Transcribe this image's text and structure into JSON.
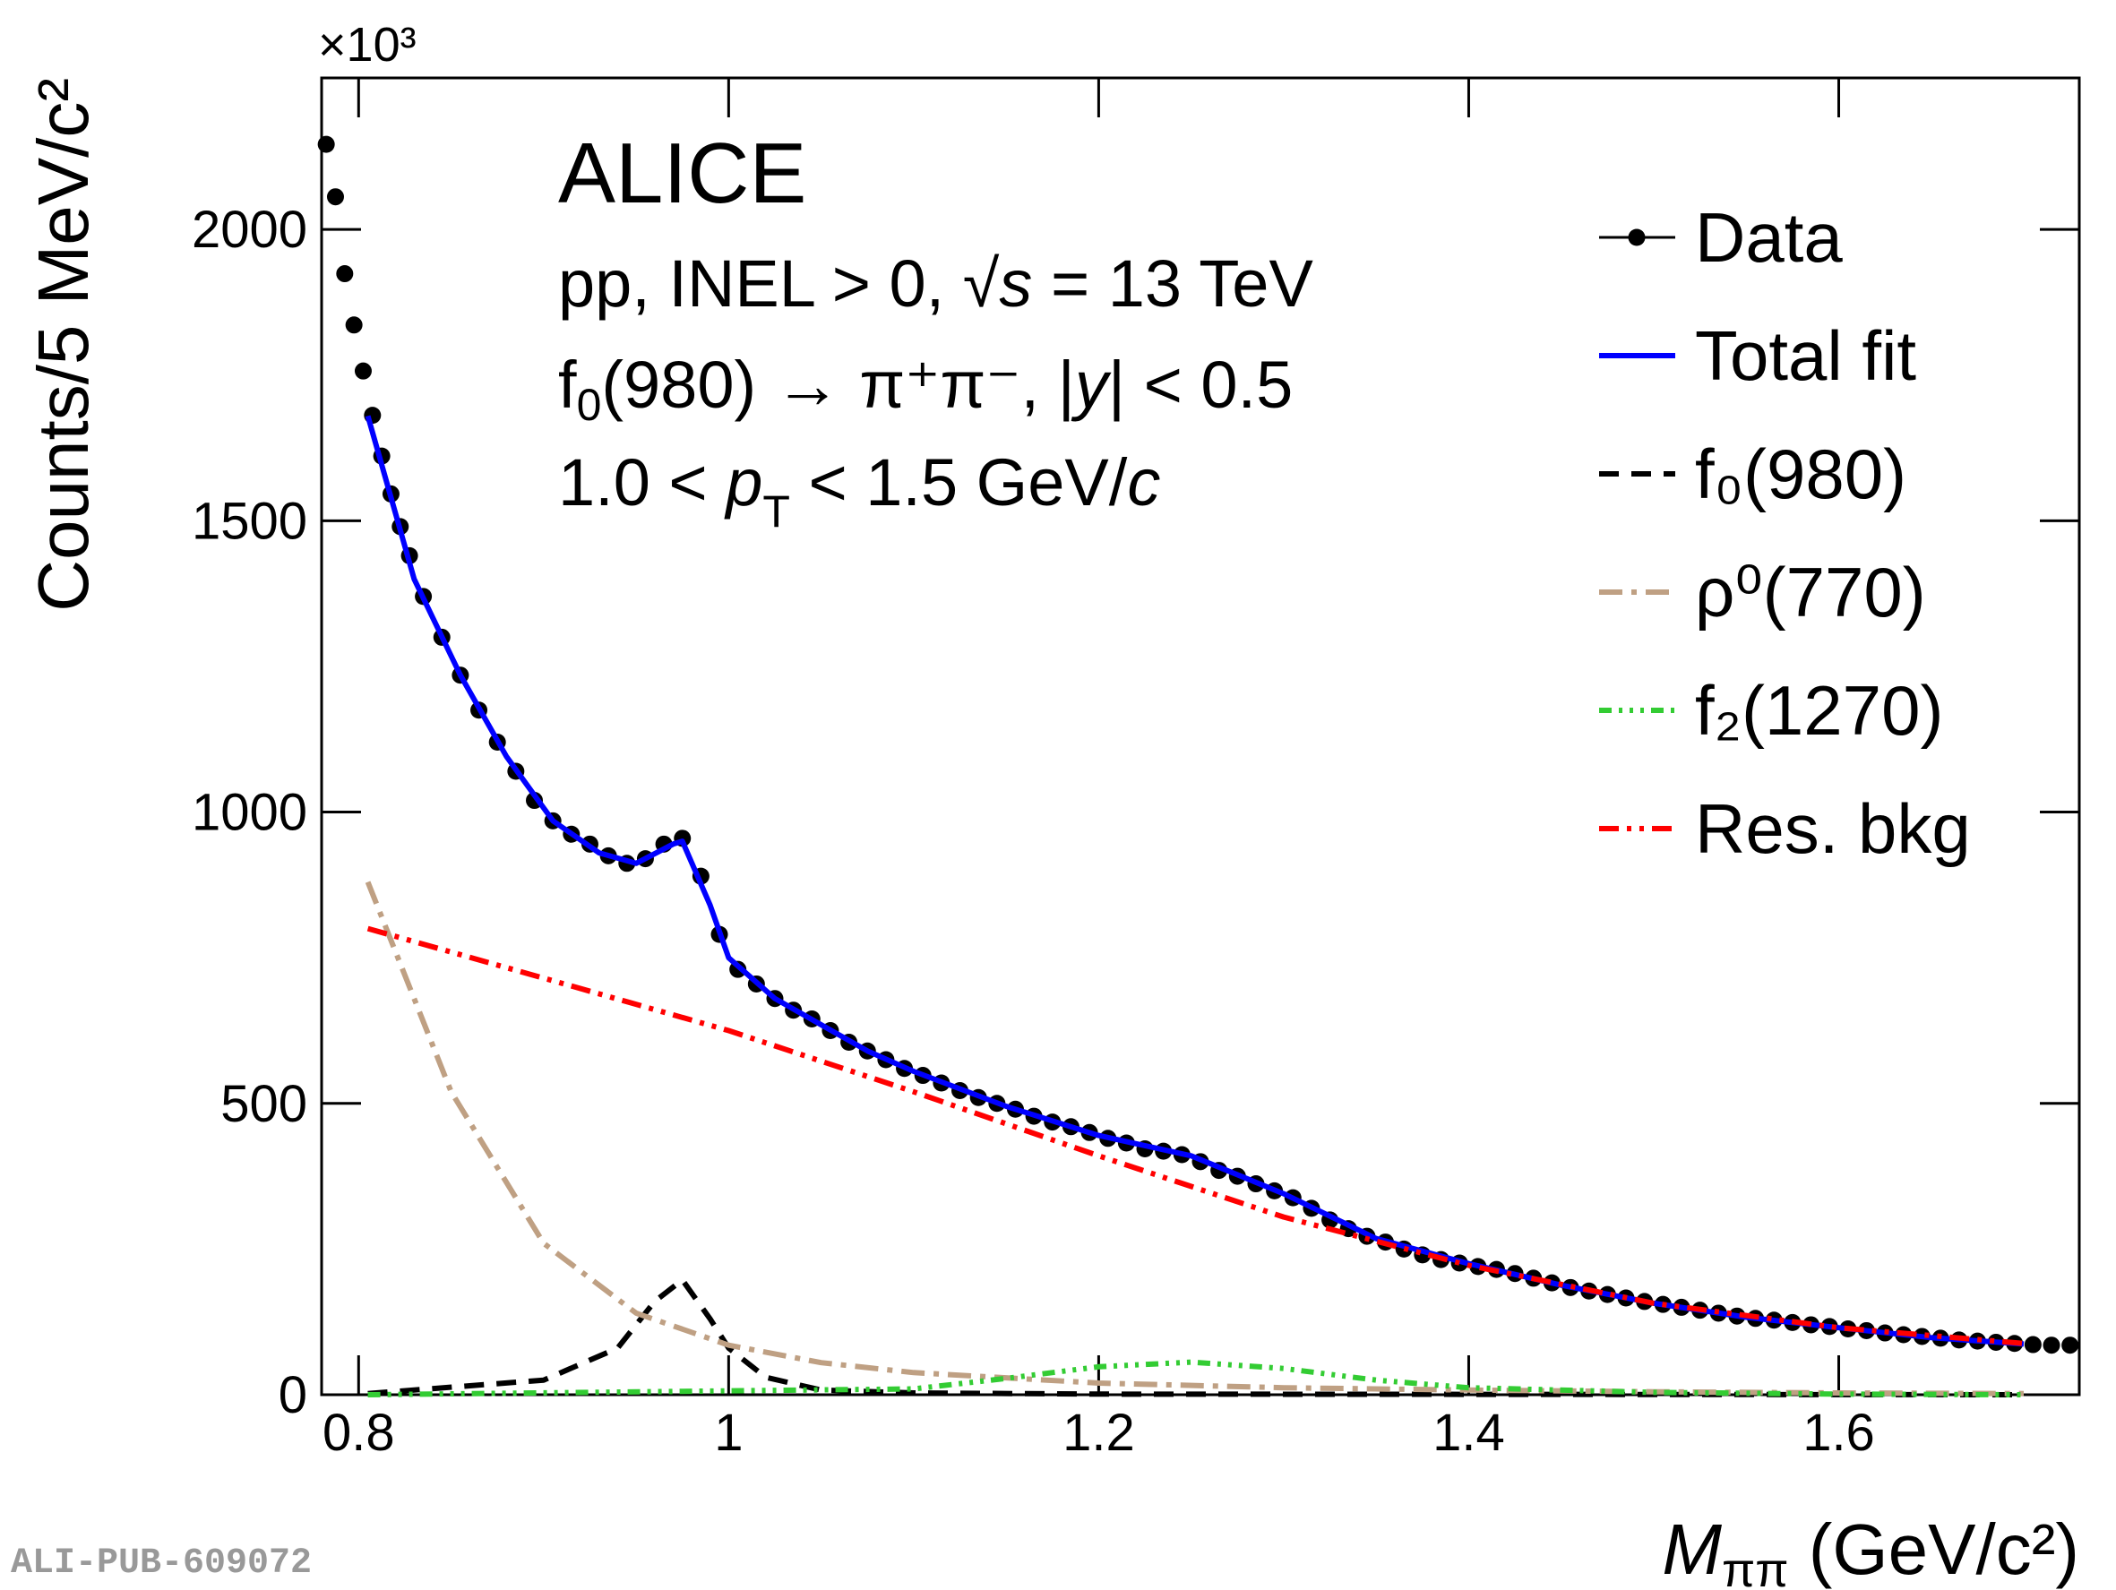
{
  "chart_data": {
    "type": "line",
    "y_multiplier": "×10³",
    "y_label": "Counts/5 MeV/c²",
    "x_label": [
      "M",
      "ππ",
      " (GeV/c²)"
    ],
    "annotations": [
      [
        "ALICE"
      ],
      [
        "pp, INEL > 0,   √",
        "s",
        " = 13 TeV"
      ],
      [
        "f",
        "0",
        "(980)   →   π⁺π⁻, |",
        "y",
        "| < 0.5"
      ],
      [
        "1.0 <  ",
        "p",
        "T",
        " < 1.5 GeV/",
        "c"
      ]
    ],
    "footnote": "ALI-PUB-609072",
    "xlim": [
      0.78,
      1.73
    ],
    "ylim": [
      0,
      2260
    ],
    "xticks": [
      0.8,
      1,
      1.2,
      1.4,
      1.6
    ],
    "yticks": [
      0,
      500,
      1000,
      1500,
      2000
    ],
    "legend": "top-right",
    "series": [
      {
        "name": "Data",
        "color": "#000000",
        "style": "markers",
        "x": [
          0.7825,
          0.7875,
          0.7925,
          0.7975,
          0.8025,
          0.8075,
          0.8125,
          0.8175,
          0.8225,
          0.8275,
          0.835,
          0.845,
          0.855,
          0.865,
          0.875,
          0.885,
          0.895,
          0.905,
          0.915,
          0.925,
          0.935,
          0.945,
          0.955,
          0.965,
          0.975,
          0.985,
          0.995,
          1.005,
          1.015,
          1.025,
          1.035,
          1.045,
          1.055,
          1.065,
          1.075,
          1.085,
          1.095,
          1.105,
          1.115,
          1.125,
          1.135,
          1.145,
          1.155,
          1.165,
          1.175,
          1.185,
          1.195,
          1.205,
          1.215,
          1.225,
          1.235,
          1.245,
          1.255,
          1.265,
          1.275,
          1.285,
          1.295,
          1.305,
          1.315,
          1.325,
          1.335,
          1.345,
          1.355,
          1.365,
          1.375,
          1.385,
          1.395,
          1.405,
          1.415,
          1.425,
          1.435,
          1.445,
          1.455,
          1.465,
          1.475,
          1.485,
          1.495,
          1.505,
          1.515,
          1.525,
          1.535,
          1.545,
          1.555,
          1.565,
          1.575,
          1.585,
          1.595,
          1.605,
          1.615,
          1.625,
          1.635,
          1.645,
          1.655,
          1.665,
          1.675,
          1.685,
          1.695,
          1.705,
          1.715,
          1.725
        ],
        "values": [
          2146,
          2056,
          1924,
          1836,
          1757,
          1681,
          1611,
          1546,
          1490,
          1440,
          1370,
          1300,
          1235,
          1175,
          1120,
          1070,
          1020,
          985,
          962,
          945,
          925,
          912,
          920,
          945,
          955,
          890,
          790,
          730,
          705,
          680,
          660,
          645,
          625,
          605,
          590,
          575,
          560,
          548,
          535,
          522,
          510,
          500,
          490,
          478,
          468,
          460,
          450,
          440,
          432,
          422,
          418,
          412,
          400,
          385,
          375,
          362,
          350,
          338,
          320,
          300,
          285,
          272,
          262,
          250,
          240,
          232,
          226,
          220,
          215,
          208,
          200,
          192,
          184,
          178,
          172,
          166,
          160,
          155,
          150,
          145,
          140,
          135,
          131,
          128,
          124,
          120,
          117,
          113,
          110,
          106,
          103,
          100,
          97,
          94,
          92,
          90,
          88,
          86,
          85,
          85
        ]
      },
      {
        "name": "Total fit",
        "color": "#0000ff",
        "style": "solid",
        "x": [
          0.805,
          0.83,
          0.855,
          0.88,
          0.905,
          0.93,
          0.95,
          0.97,
          0.975,
          0.99,
          1.0,
          1.025,
          1.05,
          1.075,
          1.1,
          1.15,
          1.2,
          1.25,
          1.3,
          1.35,
          1.4,
          1.45,
          1.5,
          1.55,
          1.6,
          1.65,
          1.7
        ],
        "values": [
          1680,
          1400,
          1235,
          1095,
          985,
          930,
          912,
          945,
          950,
          840,
          750,
          680,
          635,
          590,
          555,
          495,
          445,
          410,
          345,
          268,
          225,
          188,
          157,
          133,
          115,
          98,
          87
        ]
      },
      {
        "name": "f₀(980)",
        "color": "#000000",
        "style": "dash",
        "x": [
          0.805,
          0.9,
          0.94,
          0.96,
          0.975,
          0.99,
          1.0,
          1.02,
          1.05,
          1.1,
          1.2,
          1.7
        ],
        "values": [
          2,
          25,
          80,
          160,
          197,
          130,
          80,
          30,
          8,
          3,
          1,
          0
        ]
      },
      {
        "name": "ρ⁰(770)",
        "color": "#bfa083",
        "style": "dashdot",
        "x": [
          0.805,
          0.85,
          0.9,
          0.95,
          1.0,
          1.05,
          1.1,
          1.2,
          1.3,
          1.4,
          1.5,
          1.6,
          1.7
        ],
        "values": [
          880,
          520,
          260,
          140,
          85,
          55,
          38,
          20,
          12,
          8,
          5,
          3,
          2
        ]
      },
      {
        "name": "f₂(1270)",
        "color": "#33cc33",
        "style": "dashdotdotdot",
        "x": [
          0.805,
          1.1,
          1.15,
          1.2,
          1.25,
          1.3,
          1.35,
          1.4,
          1.5,
          1.6,
          1.7
        ],
        "values": [
          0,
          10,
          28,
          48,
          56,
          45,
          25,
          12,
          4,
          1,
          0
        ]
      },
      {
        "name": "Res. bkg",
        "color": "#ff0000",
        "style": "dashdotdot",
        "x": [
          0.805,
          0.9,
          1.0,
          1.1,
          1.2,
          1.3,
          1.4,
          1.5,
          1.6,
          1.7
        ],
        "values": [
          800,
          715,
          625,
          520,
          410,
          305,
          222,
          157,
          115,
          88
        ]
      }
    ]
  }
}
